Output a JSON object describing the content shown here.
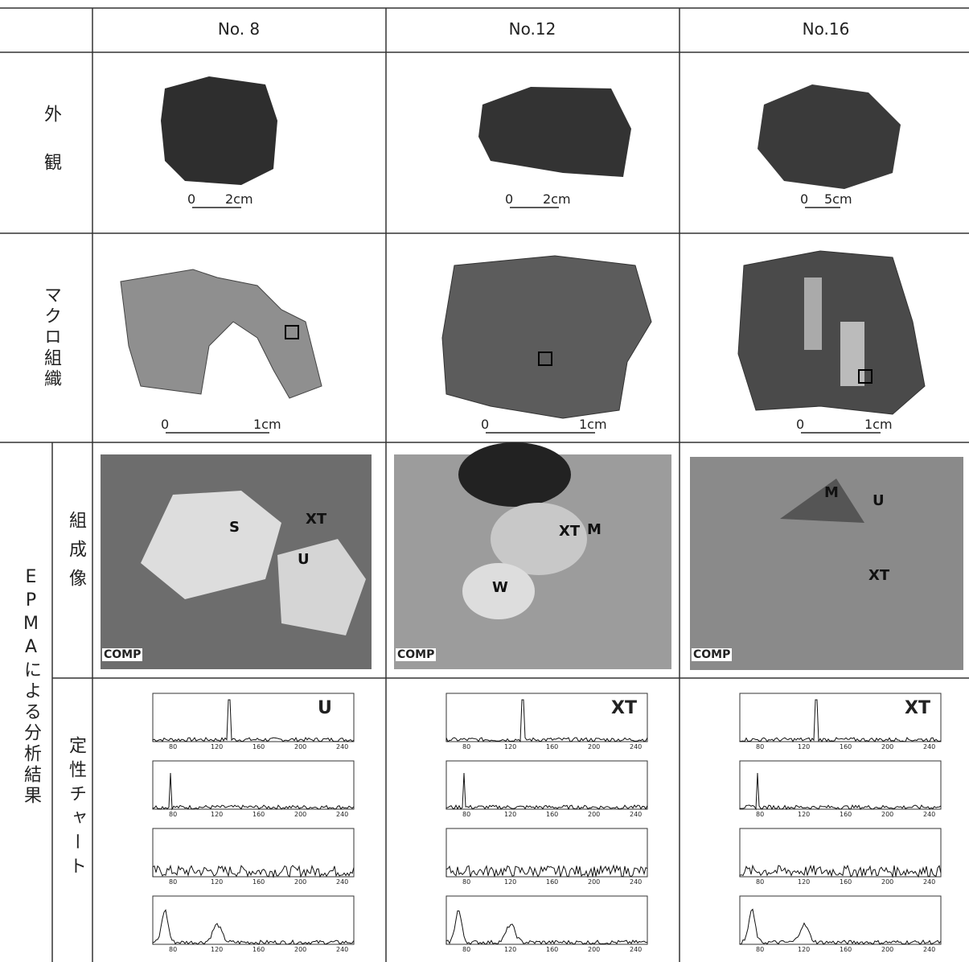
{
  "columns": [
    "No. 8",
    "No.12",
    "No.16"
  ],
  "appearance": {
    "label": "外観",
    "scales": [
      {
        "zero": "0",
        "length": "2cm"
      },
      {
        "zero": "0",
        "length": "2cm"
      },
      {
        "zero": "0",
        "length": "5cm"
      }
    ]
  },
  "macro": {
    "label": "マクロ組織",
    "scales": [
      {
        "zero": "0",
        "length": "1cm"
      },
      {
        "zero": "0",
        "length": "1cm"
      },
      {
        "zero": "0",
        "length": "1cm"
      }
    ]
  },
  "epma": {
    "label": "EPMAによる分析結果",
    "composition": {
      "label": "組成像",
      "images": [
        {
          "labels": [
            "S",
            "XT",
            "U"
          ],
          "footer": "COMP"
        },
        {
          "labels": [
            "M",
            "XT",
            "W"
          ],
          "footer": "COMP"
        },
        {
          "labels": [
            "M",
            "U",
            "XT"
          ],
          "footer": "COMP"
        }
      ]
    },
    "chart": {
      "label": "定性チャート",
      "phases": [
        "U",
        "XT",
        "XT"
      ],
      "xticks": [
        "80",
        "120",
        "160",
        "200",
        "240"
      ]
    }
  }
}
